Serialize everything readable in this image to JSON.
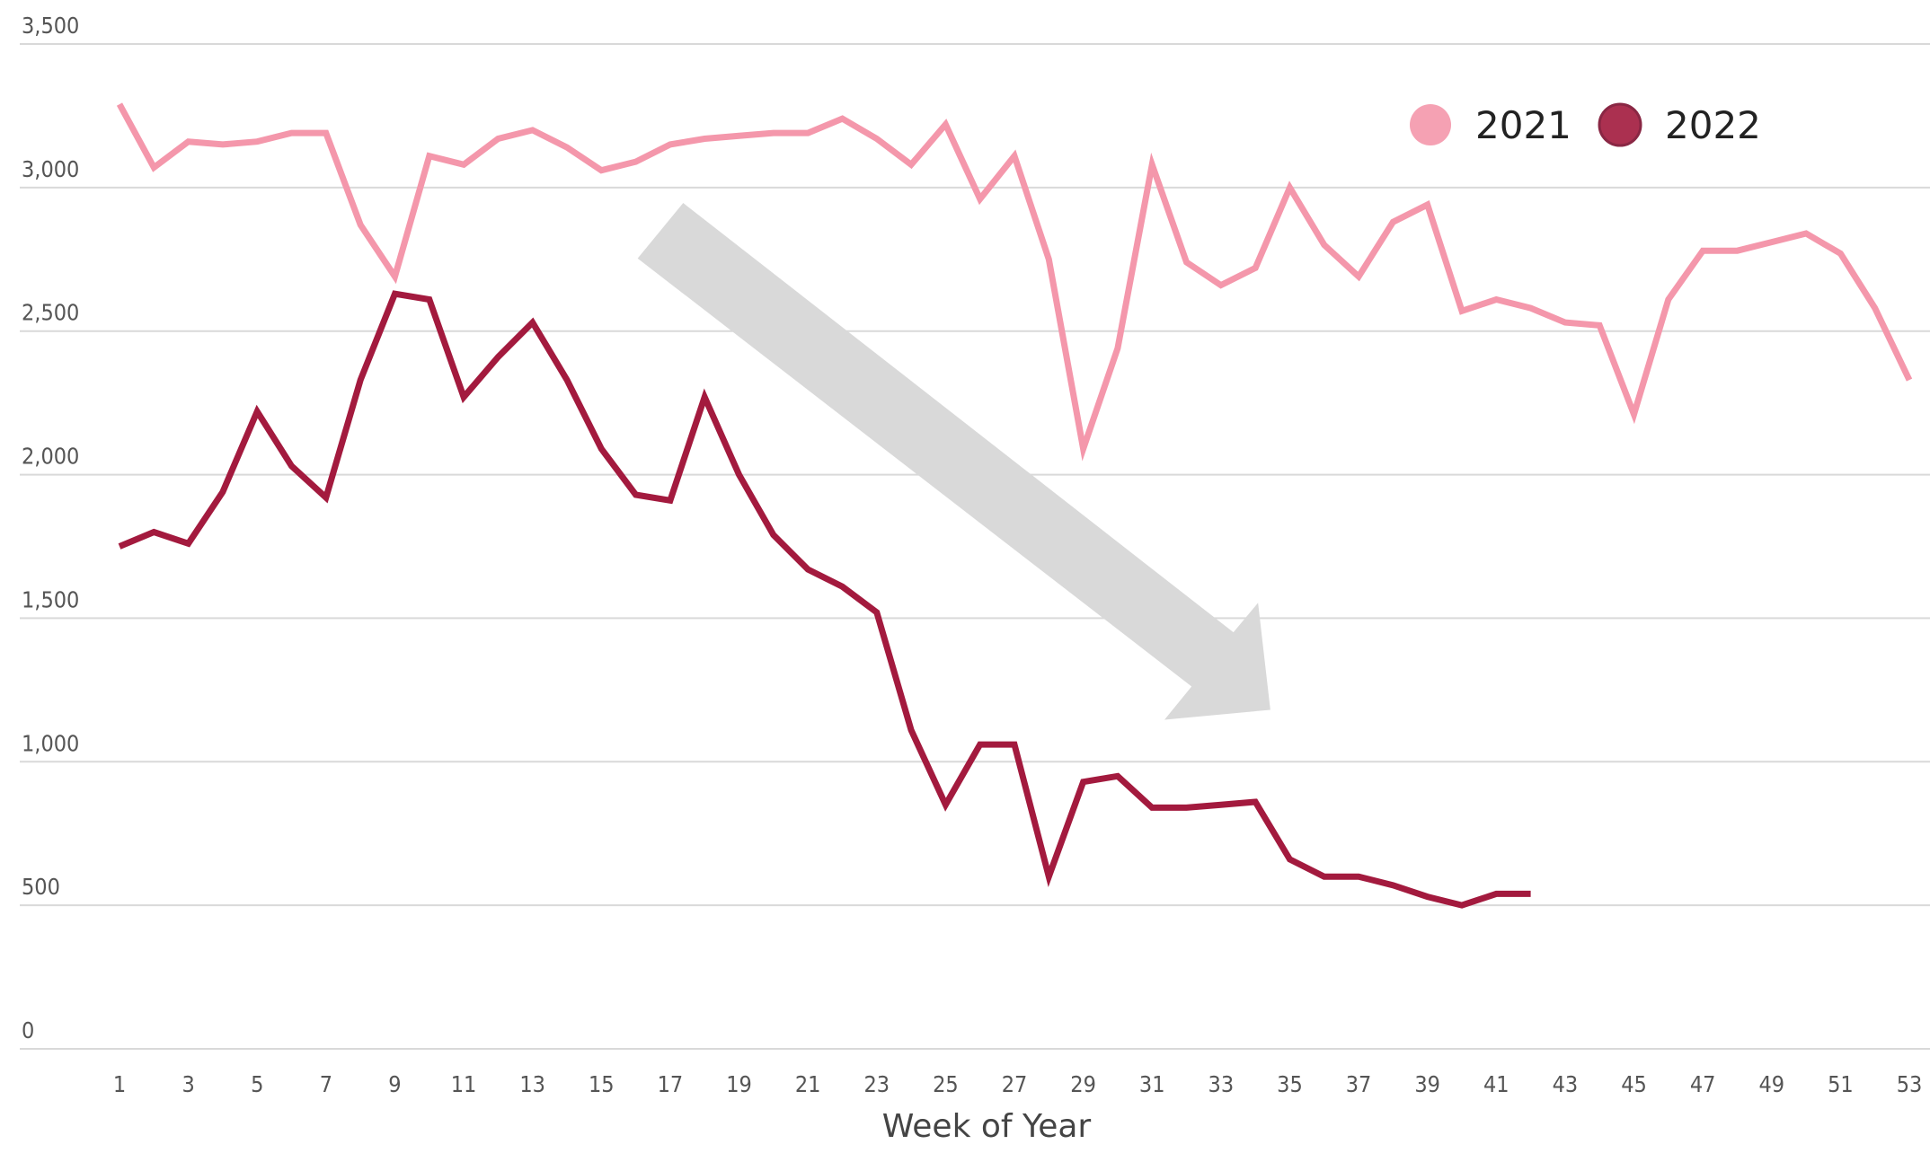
{
  "chart_data": {
    "type": "line",
    "x_label": "Week of Year",
    "x": [
      1,
      2,
      3,
      4,
      5,
      6,
      7,
      8,
      9,
      10,
      11,
      12,
      13,
      14,
      15,
      16,
      17,
      18,
      19,
      20,
      21,
      22,
      23,
      24,
      25,
      26,
      27,
      28,
      29,
      30,
      31,
      32,
      33,
      34,
      35,
      36,
      37,
      38,
      39,
      40,
      41,
      42,
      43,
      44,
      45,
      46,
      47,
      48,
      49,
      50,
      51,
      52,
      53
    ],
    "xlim": [
      1,
      53
    ],
    "xticks": [
      1,
      3,
      5,
      7,
      9,
      11,
      13,
      15,
      17,
      19,
      21,
      23,
      25,
      27,
      29,
      31,
      33,
      35,
      37,
      39,
      41,
      43,
      45,
      47,
      49,
      51,
      53
    ],
    "ylim": [
      0,
      3500
    ],
    "yticks": [
      0,
      500,
      {
        "value": 1000,
        "label": "1,000"
      },
      {
        "value": 1500,
        "label": "1,500"
      },
      {
        "value": 2000,
        "label": "2,000"
      },
      {
        "value": 2500,
        "label": "2,500"
      },
      {
        "value": 3000,
        "label": "3,000"
      },
      {
        "value": 3500,
        "label": "3,500"
      }
    ],
    "grid": true,
    "legend": "top-right",
    "series": [
      {
        "name": "2021",
        "color": "#f497ab",
        "values": [
          3290,
          3070,
          3160,
          3150,
          3160,
          3190,
          3190,
          2870,
          2690,
          3110,
          3080,
          3170,
          3200,
          3140,
          3060,
          3090,
          3150,
          3170,
          3180,
          3190,
          3190,
          3240,
          3170,
          3080,
          3220,
          2960,
          3110,
          2750,
          2090,
          2440,
          3080,
          2740,
          2660,
          2720,
          3000,
          2800,
          2690,
          2880,
          2940,
          2570,
          2610,
          2580,
          2530,
          2520,
          2210,
          2610,
          2780,
          2780,
          2810,
          2840,
          2770,
          2580,
          2330
        ]
      },
      {
        "name": "2022",
        "color": "#a31a3e",
        "values": [
          1750,
          1800,
          1760,
          1940,
          2220,
          2030,
          1920,
          2330,
          2630,
          2610,
          2270,
          2410,
          2530,
          2330,
          2090,
          1930,
          1910,
          2270,
          2000,
          1790,
          1670,
          1610,
          1520,
          1110,
          850,
          1060,
          1060,
          600,
          930,
          950,
          840,
          840,
          850,
          860,
          660,
          600,
          600,
          570,
          530,
          500,
          540,
          540,
          null,
          null,
          null,
          null,
          null,
          null,
          null,
          null,
          null,
          null,
          null
        ]
      }
    ]
  }
}
